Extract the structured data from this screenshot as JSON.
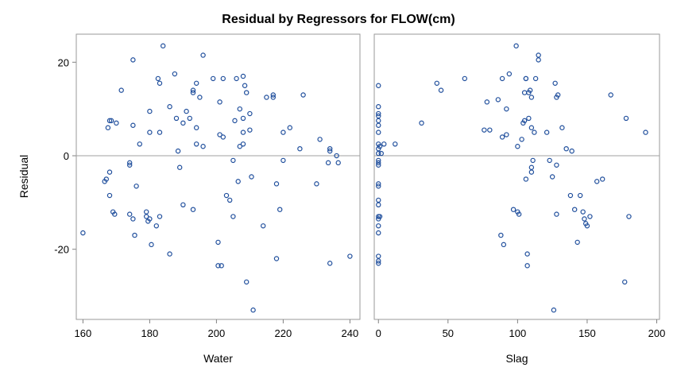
{
  "chart_data": {
    "type": "scatter",
    "title": "Residual by Regressors for FLOW(cm)",
    "ylabel": "Residual",
    "ylim": [
      -35,
      26
    ],
    "yticks": [
      -20,
      0,
      20
    ],
    "reference_line_y": 0,
    "marker_color": "#1f4e9c",
    "reference_line_color": "#a0a0a0",
    "panels": [
      {
        "xlabel": "Water",
        "xlim": [
          158,
          243
        ],
        "xticks": [
          160,
          180,
          200,
          220,
          240
        ],
        "points": [
          [
            160,
            -16.5
          ],
          [
            166.5,
            -5.5
          ],
          [
            167,
            -5
          ],
          [
            167.5,
            6
          ],
          [
            168,
            7.5
          ],
          [
            168,
            -3.5
          ],
          [
            168,
            -8.5
          ],
          [
            168.5,
            7.5
          ],
          [
            169,
            -12
          ],
          [
            169.5,
            -12.5
          ],
          [
            170,
            7
          ],
          [
            171.5,
            14
          ],
          [
            174,
            -1.5
          ],
          [
            174,
            -2
          ],
          [
            174,
            -12.5
          ],
          [
            175,
            20.5
          ],
          [
            175,
            6.5
          ],
          [
            175,
            -13.5
          ],
          [
            175.5,
            -17
          ],
          [
            176,
            -6.5
          ],
          [
            177,
            2.5
          ],
          [
            179,
            -12
          ],
          [
            179,
            -13
          ],
          [
            179.5,
            -14
          ],
          [
            180,
            9.5
          ],
          [
            180,
            5
          ],
          [
            180,
            -13.5
          ],
          [
            180.5,
            -19
          ],
          [
            182,
            -15
          ],
          [
            182.5,
            16.5
          ],
          [
            183,
            15.5
          ],
          [
            183,
            5
          ],
          [
            183,
            -13
          ],
          [
            184,
            23.5
          ],
          [
            186,
            10.5
          ],
          [
            186,
            -21
          ],
          [
            187.5,
            17.5
          ],
          [
            188,
            8
          ],
          [
            188.5,
            1
          ],
          [
            189,
            -2.5
          ],
          [
            190,
            7
          ],
          [
            190,
            -10.5
          ],
          [
            191,
            9.5
          ],
          [
            192,
            8
          ],
          [
            193,
            13.5
          ],
          [
            193,
            14
          ],
          [
            193,
            -11.5
          ],
          [
            194,
            15.5
          ],
          [
            194,
            6
          ],
          [
            194,
            2.5
          ],
          [
            195,
            12.5
          ],
          [
            196,
            21.5
          ],
          [
            196,
            2
          ],
          [
            199,
            16.5
          ],
          [
            200.5,
            -18.5
          ],
          [
            200.5,
            -23.5
          ],
          [
            201,
            11.5
          ],
          [
            201,
            4.5
          ],
          [
            201.5,
            -23.5
          ],
          [
            202,
            16.5
          ],
          [
            202,
            4
          ],
          [
            203,
            -8.5
          ],
          [
            204,
            -9.5
          ],
          [
            205,
            -1
          ],
          [
            205,
            -13
          ],
          [
            205.5,
            7.5
          ],
          [
            206,
            16.5
          ],
          [
            206.5,
            -5.5
          ],
          [
            207,
            10
          ],
          [
            207,
            2
          ],
          [
            208,
            17
          ],
          [
            208,
            8
          ],
          [
            208,
            5
          ],
          [
            208,
            2.5
          ],
          [
            208.5,
            15
          ],
          [
            209,
            13.5
          ],
          [
            209,
            -27
          ],
          [
            210,
            9
          ],
          [
            210,
            5.5
          ],
          [
            210.5,
            -4.5
          ],
          [
            211,
            -33
          ],
          [
            214,
            -15
          ],
          [
            215,
            12.5
          ],
          [
            217,
            13
          ],
          [
            217,
            12.5
          ],
          [
            218,
            -6
          ],
          [
            218,
            -22
          ],
          [
            219,
            -11.5
          ],
          [
            220,
            5
          ],
          [
            220,
            -1
          ],
          [
            222,
            6
          ],
          [
            225,
            1.5
          ],
          [
            226,
            13
          ],
          [
            230,
            -6
          ],
          [
            231,
            3.5
          ],
          [
            233.5,
            -1.5
          ],
          [
            234,
            1
          ],
          [
            234,
            1.5
          ],
          [
            234,
            -23
          ],
          [
            236,
            0
          ],
          [
            236.5,
            -1.5
          ],
          [
            240,
            -21.5
          ]
        ]
      },
      {
        "xlabel": "Slag",
        "xlim": [
          -3,
          202
        ],
        "xticks": [
          0,
          50,
          100,
          150,
          200
        ],
        "points": [
          [
            0,
            15
          ],
          [
            0,
            10.5
          ],
          [
            0,
            9
          ],
          [
            0,
            8.5
          ],
          [
            0,
            7.5
          ],
          [
            0,
            6.5
          ],
          [
            0,
            5
          ],
          [
            0,
            2.5
          ],
          [
            0,
            1.5
          ],
          [
            0,
            0.5
          ],
          [
            0,
            -1
          ],
          [
            0,
            -1.5
          ],
          [
            0,
            -2
          ],
          [
            0,
            -6
          ],
          [
            0,
            -6.5
          ],
          [
            0,
            -9.5
          ],
          [
            0,
            -10.5
          ],
          [
            0,
            -13
          ],
          [
            0,
            -13.5
          ],
          [
            0,
            -15
          ],
          [
            0,
            -16.5
          ],
          [
            0,
            -21.5
          ],
          [
            0,
            -22.5
          ],
          [
            0,
            -23
          ],
          [
            1,
            2
          ],
          [
            1,
            -13
          ],
          [
            2,
            0.5
          ],
          [
            4,
            2.5
          ],
          [
            12,
            2.5
          ],
          [
            31,
            7
          ],
          [
            42,
            15.5
          ],
          [
            45,
            14
          ],
          [
            62,
            16.5
          ],
          [
            76,
            5.5
          ],
          [
            78,
            11.5
          ],
          [
            80,
            5.5
          ],
          [
            86,
            12
          ],
          [
            88,
            -17
          ],
          [
            89,
            16.5
          ],
          [
            89,
            4
          ],
          [
            90,
            -19
          ],
          [
            92,
            10
          ],
          [
            92,
            4.5
          ],
          [
            94,
            17.5
          ],
          [
            97,
            -11.5
          ],
          [
            99,
            23.5
          ],
          [
            100,
            2
          ],
          [
            100,
            -12
          ],
          [
            101,
            -12.5
          ],
          [
            103,
            3.5
          ],
          [
            104,
            7
          ],
          [
            105,
            13.5
          ],
          [
            105,
            7.5
          ],
          [
            106,
            16.5
          ],
          [
            106,
            16.5
          ],
          [
            106,
            -5
          ],
          [
            107,
            -21
          ],
          [
            107,
            -23.5
          ],
          [
            108,
            8
          ],
          [
            108,
            13.5
          ],
          [
            109,
            14
          ],
          [
            110,
            12.5
          ],
          [
            110,
            6
          ],
          [
            110,
            -2.5
          ],
          [
            110,
            -3.5
          ],
          [
            111,
            -1
          ],
          [
            112,
            5
          ],
          [
            113,
            16.5
          ],
          [
            115,
            20.5
          ],
          [
            115,
            21.5
          ],
          [
            121,
            5
          ],
          [
            123,
            -1
          ],
          [
            125,
            -4.5
          ],
          [
            126,
            -33
          ],
          [
            127,
            15.5
          ],
          [
            128,
            12.5
          ],
          [
            128,
            -2
          ],
          [
            128,
            -12.5
          ],
          [
            129,
            13
          ],
          [
            132,
            6
          ],
          [
            135,
            1.5
          ],
          [
            138,
            -8.5
          ],
          [
            139,
            1
          ],
          [
            141,
            -11.5
          ],
          [
            143,
            -18.5
          ],
          [
            145,
            -8.5
          ],
          [
            147,
            -12
          ],
          [
            148,
            -13.5
          ],
          [
            149,
            -14.5
          ],
          [
            150,
            -15
          ],
          [
            152,
            -13
          ],
          [
            157,
            -5.5
          ],
          [
            161,
            -5
          ],
          [
            167,
            13
          ],
          [
            177,
            -27
          ],
          [
            178,
            8
          ],
          [
            180,
            -13
          ],
          [
            192,
            5
          ]
        ]
      }
    ]
  }
}
